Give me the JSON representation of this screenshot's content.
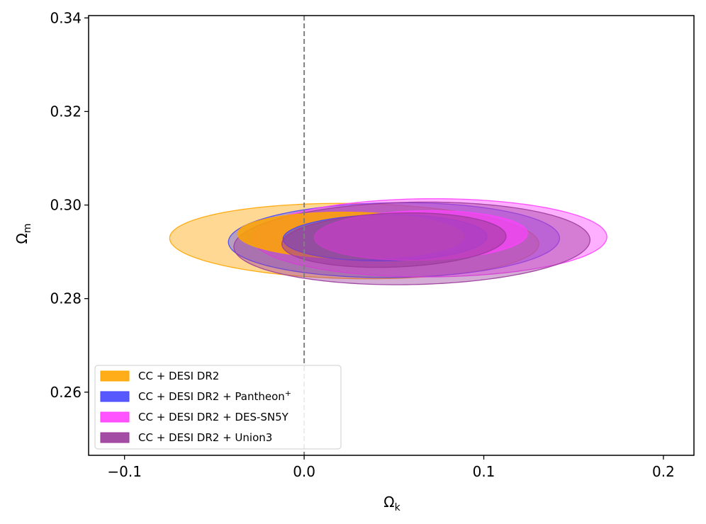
{
  "chart_data": {
    "type": "contour",
    "title": "",
    "xlabel": "Ω",
    "xlabel_sub": "k",
    "ylabel": "Ω",
    "ylabel_sub": "m",
    "xlim": [
      -0.12,
      0.217
    ],
    "ylim": [
      0.2465,
      0.3405
    ],
    "xticks": [
      -0.1,
      0.0,
      0.1,
      0.2
    ],
    "xtick_labels": [
      "−0.1",
      "0.0",
      "0.1",
      "0.2"
    ],
    "yticks": [
      0.26,
      0.28,
      0.3,
      0.32,
      0.34
    ],
    "ytick_labels": [
      "0.26",
      "0.28",
      "0.30",
      "0.32",
      "0.34"
    ],
    "reference_line": {
      "x": 0.0,
      "style": "dashed",
      "color": "#808080"
    },
    "legend_position": "bottom-left",
    "series": [
      {
        "name": "CC + DESI DR2",
        "suffix": "",
        "color": "#FFA500",
        "contours": [
          {
            "level": "2sigma",
            "center": [
              0.0279,
              0.2923
            ],
            "semi_axes": [
              0.1045,
              0.0079
            ],
            "angle_deg": -25.5,
            "opacity": 0.42
          },
          {
            "level": "1sigma",
            "center": [
              0.026,
              0.2935
            ],
            "semi_axes": [
              0.064,
              0.0049
            ],
            "angle_deg": -25.5,
            "opacity": 0.85
          }
        ]
      },
      {
        "name": "CC + DESI DR2 + Pantheon",
        "suffix": "+",
        "color": "#4646FF",
        "contours": [
          {
            "level": "2sigma",
            "center": [
              0.05,
              0.2925
            ],
            "semi_axes": [
              0.091,
              0.0081
            ],
            "angle_deg": -25.5,
            "opacity": 0.4
          },
          {
            "level": "1sigma",
            "center": [
              0.045,
              0.293
            ],
            "semi_axes": [
              0.056,
              0.005
            ],
            "angle_deg": -25.5,
            "opacity": 0.6
          }
        ]
      },
      {
        "name": "CC + DESI DR2 + DES-SN5Y",
        "suffix": "",
        "color": "#FF40FF",
        "contours": [
          {
            "level": "2sigma",
            "center": [
              0.07,
              0.293
            ],
            "semi_axes": [
              0.098,
              0.0084
            ],
            "angle_deg": -25.5,
            "opacity": 0.42
          },
          {
            "level": "1sigma",
            "center": [
              0.065,
              0.2935
            ],
            "semi_axes": [
              0.058,
              0.0054
            ],
            "angle_deg": -25.5,
            "opacity": 0.65
          }
        ]
      },
      {
        "name": "CC + DESI DR2 + Union3",
        "suffix": "",
        "color": "#9A3A9A",
        "contours": [
          {
            "level": "2sigma",
            "center": [
              0.06,
              0.2918
            ],
            "semi_axes": [
              0.097,
              0.009
            ],
            "angle_deg": -25.5,
            "opacity": 0.42
          },
          {
            "level": "1sigma",
            "center": [
              0.05,
              0.2925
            ],
            "semi_axes": [
              0.06,
              0.006
            ],
            "angle_deg": -25.5,
            "opacity": 0.55
          }
        ]
      }
    ]
  }
}
